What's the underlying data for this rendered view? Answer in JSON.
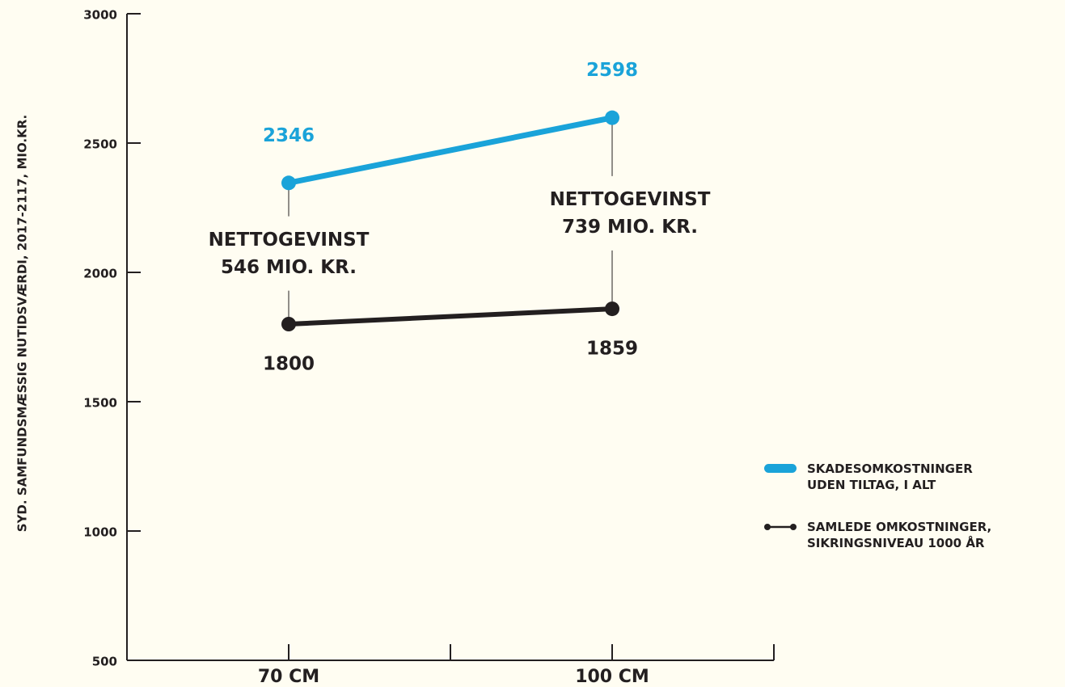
{
  "chart_data": {
    "type": "line",
    "y_label": "SYD. SAMFUNDSMÆSSIG NUTIDSVÆRDI, 2017-2117, MIO.KR.",
    "categories": [
      "70 CM",
      "100 CM"
    ],
    "series": [
      {
        "name": "SKADESOMKOSTNINGER\nUDEN TILTAG, I ALT",
        "color": "#1aa3d9",
        "values": [
          2346,
          2598
        ]
      },
      {
        "name": "SAMLEDE OMKOSTNINGER,\nSIKRINGSNIVEAU 1000 ÅR",
        "color": "#231f20",
        "values": [
          1800,
          1859
        ]
      }
    ],
    "annotations": [
      "NETTOGEVINST\n546 MIO. KR.",
      "NETTOGEVINST\n739 MIO. KR."
    ],
    "ylim": [
      500,
      3000
    ],
    "yticks": [
      500,
      1000,
      1500,
      2000,
      2500,
      3000
    ],
    "grid": false,
    "legend": "right"
  }
}
